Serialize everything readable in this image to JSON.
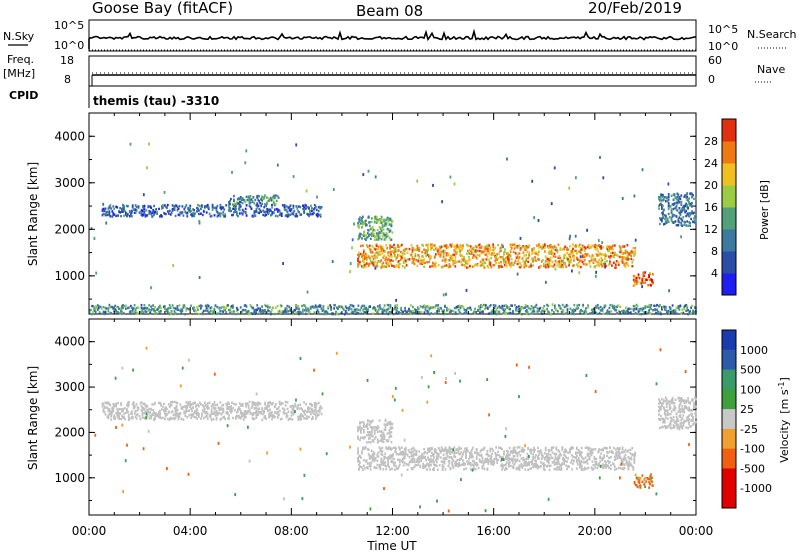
{
  "header": {
    "station": "Goose Bay (fitACF)",
    "beam": "Beam 08",
    "date": "20/Feb/2019"
  },
  "strips": {
    "nsky": {
      "label": "N.Sky",
      "top_tick": "10^5",
      "bottom_tick": "10^0",
      "right_label": "N.Search",
      "right_top_tick": "10^5",
      "right_bottom_tick": "10^0"
    },
    "freq": {
      "label": "Freq.",
      "unit": "[MHz]",
      "top_tick": "18",
      "bottom_tick": "8",
      "right_label": "Nave",
      "right_top_tick": "60",
      "right_bottom_tick": "0"
    },
    "cpid": {
      "label": "CPID",
      "text": "themis (tau) -3310"
    }
  },
  "colors": {
    "power_scale": [
      "#1e1ef0",
      "#2a4ea8",
      "#3b7a9e",
      "#52a07a",
      "#9ccc45",
      "#f0c020",
      "#f07a10",
      "#e03010",
      "#e00000"
    ],
    "velocity_scale": [
      "#e00000",
      "#f06010",
      "#f0a030",
      "#c8c8c8",
      "#c8c8c8",
      "#3da03d",
      "#3a9a6a",
      "#2a5aa8",
      "#1a3ab0"
    ],
    "ground_scatter": "#c0c0c0"
  },
  "chart_data": [
    {
      "type": "heatmap",
      "panel": "power",
      "ylabel": "Slant Range [km]",
      "ylim": [
        180,
        4500
      ],
      "yticks": [
        "1000",
        "2000",
        "3000",
        "4000"
      ],
      "xlim_hours": [
        0,
        24
      ],
      "colorbar": {
        "label": "Power [dB]",
        "ticks": [
          "4",
          "8",
          "12",
          "16",
          "20",
          "24",
          "28"
        ],
        "range": [
          0,
          32
        ]
      },
      "series": [
        {
          "x_range_hours": [
            0.5,
            9.2
          ],
          "y_range_km": [
            2300,
            2550
          ],
          "approx_db": 6
        },
        {
          "x_range_hours": [
            5.5,
            7.5
          ],
          "y_range_km": [
            2550,
            2750
          ],
          "approx_db": 10
        },
        {
          "x_range_hours": [
            10.6,
            21.6
          ],
          "y_range_km": [
            1200,
            1700
          ],
          "approx_db": 22
        },
        {
          "x_range_hours": [
            10.6,
            12.0
          ],
          "y_range_km": [
            1800,
            2300
          ],
          "approx_db": 12
        },
        {
          "x_range_hours": [
            21.5,
            22.3
          ],
          "y_range_km": [
            800,
            1100
          ],
          "approx_db": 26
        },
        {
          "x_range_hours": [
            22.5,
            24.0
          ],
          "y_range_km": [
            2100,
            2800
          ],
          "approx_db": 8
        },
        {
          "x_range_hours": [
            0.0,
            24.0
          ],
          "y_range_km": [
            200,
            400
          ],
          "approx_db": 10
        }
      ]
    },
    {
      "type": "heatmap",
      "panel": "velocity",
      "xlabel": "Time UT",
      "xticks": [
        "00:00",
        "04:00",
        "08:00",
        "12:00",
        "16:00",
        "20:00",
        "00:00"
      ],
      "ylabel": "Slant Range [km]",
      "ylim": [
        180,
        4500
      ],
      "yticks": [
        "1000",
        "2000",
        "3000",
        "4000"
      ],
      "xlim_hours": [
        0,
        24
      ],
      "colorbar": {
        "label_main": "Velocity",
        "label_unit": "[m s",
        "label_exp": "-1",
        "label_close": "]",
        "ticks": [
          "1000",
          "500",
          "100",
          "25",
          "-25",
          "-100",
          "-500",
          "-1000"
        ]
      },
      "series": [
        {
          "x_range_hours": [
            0.5,
            9.2
          ],
          "y_range_km": [
            2300,
            2700
          ],
          "approx_velocity": 0
        },
        {
          "x_range_hours": [
            10.6,
            21.6
          ],
          "y_range_km": [
            1200,
            1700
          ],
          "approx_velocity": 0
        },
        {
          "x_range_hours": [
            10.6,
            12.0
          ],
          "y_range_km": [
            1800,
            2300
          ],
          "approx_velocity": 0
        },
        {
          "x_range_hours": [
            21.5,
            22.3
          ],
          "y_range_km": [
            800,
            1100
          ],
          "approx_velocity": -200
        },
        {
          "x_range_hours": [
            22.5,
            24.0
          ],
          "y_range_km": [
            2100,
            2800
          ],
          "approx_velocity": 0
        }
      ]
    }
  ]
}
